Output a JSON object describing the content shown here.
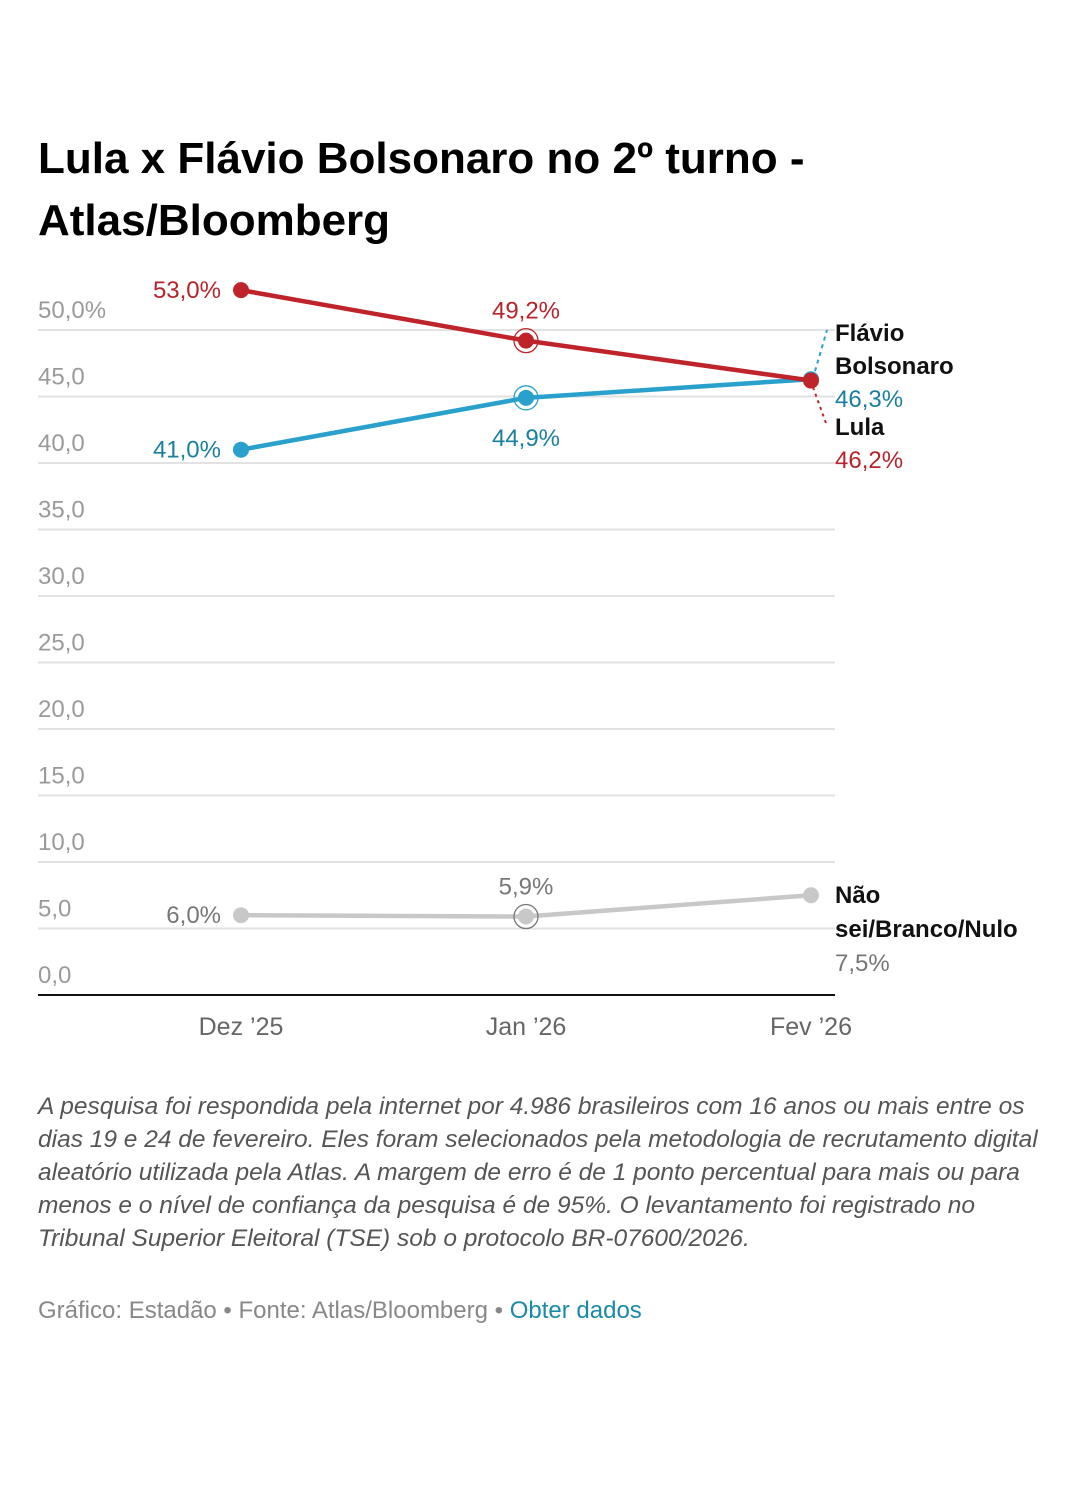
{
  "title": "Lula x Flávio Bolsonaro no 2º turno - Atlas/Bloomberg",
  "chart_data": {
    "type": "line",
    "title": "Lula x Flávio Bolsonaro no 2º turno - Atlas/Bloomberg",
    "xlabel": "",
    "ylabel": "",
    "x": [
      "Dez ’25",
      "Jan ’26",
      "Fev ’26"
    ],
    "ylim": [
      0,
      50
    ],
    "yticks": [
      0,
      5,
      10,
      15,
      20,
      25,
      30,
      35,
      40,
      45,
      50
    ],
    "ytick_labels": [
      "0,0",
      "5,0",
      "10,0",
      "15,0",
      "20,0",
      "25,0",
      "30,0",
      "35,0",
      "40,0",
      "45,0",
      "50,0%"
    ],
    "grid": true,
    "legend": "direct labels at right end",
    "series": [
      {
        "name": "Lula",
        "color": "#c0242b",
        "label_color": "#b5242b",
        "values": [
          53.0,
          49.2,
          46.2
        ],
        "value_labels": [
          "53,0%",
          "49,2%",
          "46,2%"
        ],
        "end_label": "Lula"
      },
      {
        "name": "Flávio Bolsonaro",
        "color": "#2aa0cc",
        "label_color": "#1a7f9e",
        "values": [
          41.0,
          44.9,
          46.3
        ],
        "value_labels": [
          "41,0%",
          "44,9%",
          "46,3%"
        ],
        "end_label": "Flávio Bolsonaro"
      },
      {
        "name": "Não sei/Branco/Nulo",
        "color": "#c8c8c8",
        "label_color": "#777777",
        "values": [
          6.0,
          5.9,
          7.5
        ],
        "value_labels": [
          "6,0%",
          "5,9%",
          "7,5%"
        ],
        "end_label": "Não sei/Branco/Nulo"
      }
    ]
  },
  "note": "A pesquisa foi respondida pela internet por 4.986 brasileiros com 16 anos ou mais entre os dias 19 e 24 de fevereiro. Eles foram selecionados pela metodologia de recrutamento digital aleatório utilizada pela Atlas. A margem de erro é de 1 ponto percentual para mais ou para menos e o nível de confiança da pesquisa é de 95%. O levantamento foi registrado no Tribunal Superior Eleitoral (TSE) sob o protocolo BR-07600/2026.",
  "source": {
    "text": "Gráfico: Estadão • Fonte: Atlas/Bloomberg • ",
    "link": "Obter dados"
  }
}
